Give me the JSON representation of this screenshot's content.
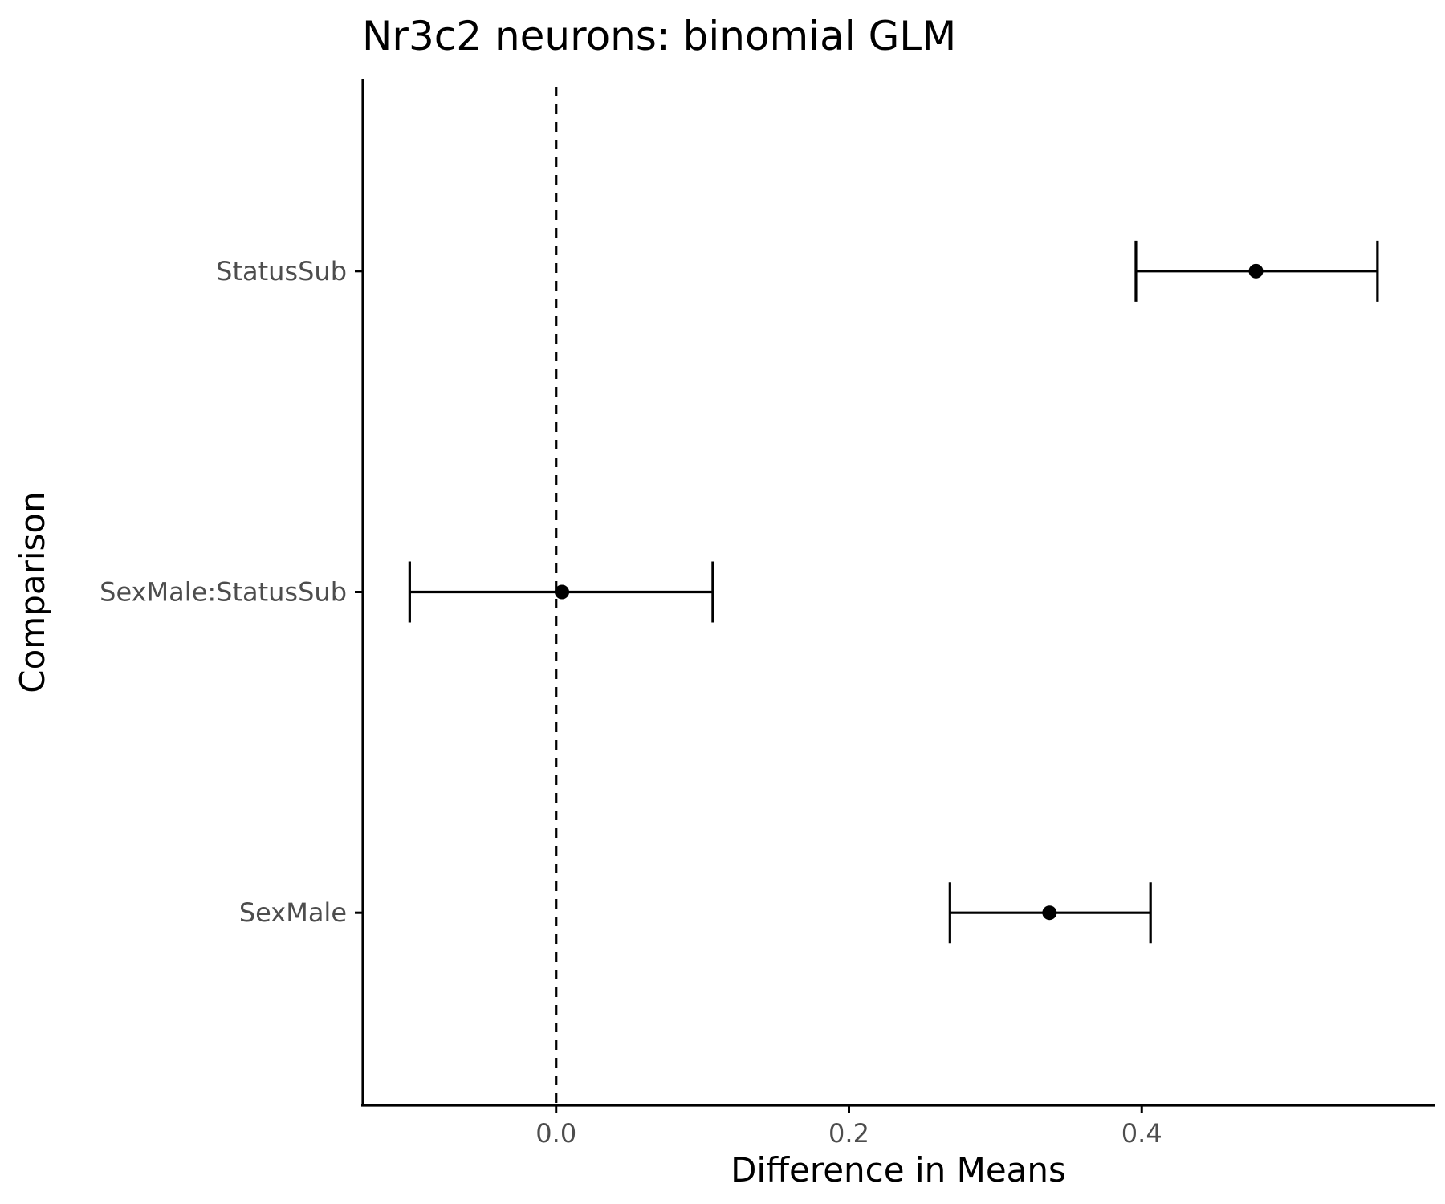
{
  "chart_data": {
    "type": "errorbar",
    "title": "Nr3c2 neurons: binomial GLM",
    "xlabel": "Difference in Means",
    "ylabel": "Comparison",
    "xlim": [
      -0.132,
      0.6
    ],
    "x_ticks": [
      {
        "value": 0.0,
        "label": "0.0"
      },
      {
        "value": 0.2,
        "label": "0.2"
      },
      {
        "value": 0.4,
        "label": "0.4"
      }
    ],
    "reference_line": {
      "x": 0,
      "style": "dashed"
    },
    "grid": false,
    "legend": "none",
    "categories": [
      "StatusSub",
      "SexMale:StatusSub",
      "SexMale"
    ],
    "points": [
      {
        "label": "StatusSub",
        "estimate": 0.478,
        "lower": 0.396,
        "upper": 0.561
      },
      {
        "label": "SexMale:StatusSub",
        "estimate": 0.004,
        "lower": -0.1,
        "upper": 0.107
      },
      {
        "label": "SexMale",
        "estimate": 0.337,
        "lower": 0.269,
        "upper": 0.406
      }
    ],
    "colors": {
      "marks": "#000000",
      "tick_text": "#4d4d4d",
      "background": "#ffffff"
    }
  }
}
